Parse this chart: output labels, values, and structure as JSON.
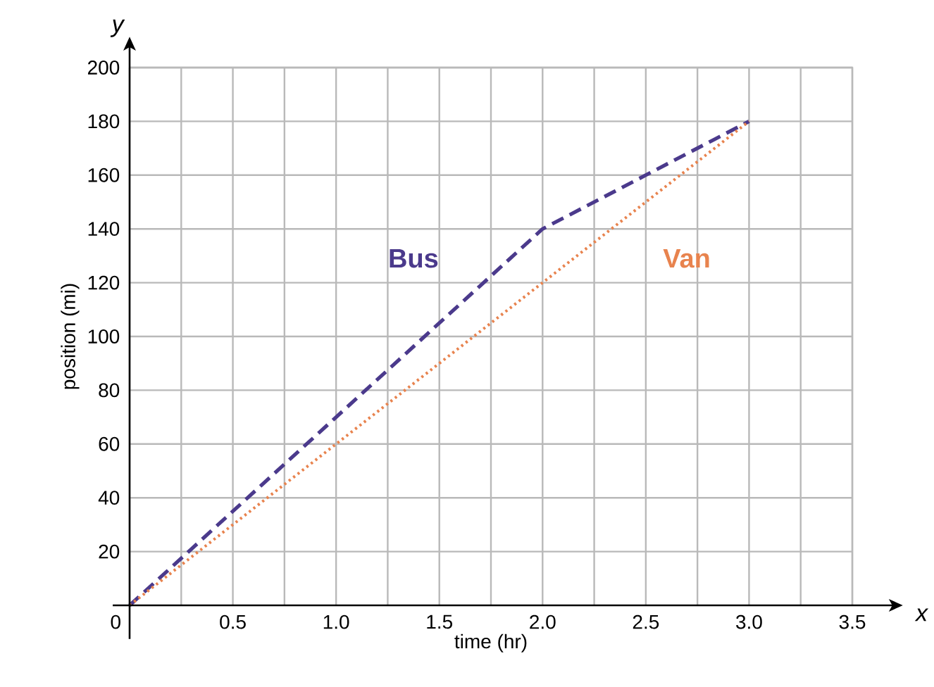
{
  "chart_data": {
    "type": "line",
    "xlabel": "time (hr)",
    "ylabel": "position (mi)",
    "annotations": [
      "x",
      "y"
    ],
    "xlim": [
      0,
      3.5
    ],
    "ylim": [
      0,
      200
    ],
    "xticks": [
      {
        "value": 0,
        "label": "0"
      },
      {
        "value": 0.5,
        "label": "0.5"
      },
      {
        "value": 1,
        "label": "1.0"
      },
      {
        "value": 1.5,
        "label": "1.5"
      },
      {
        "value": 2,
        "label": "2.0"
      },
      {
        "value": 2.5,
        "label": "2.5"
      },
      {
        "value": 3,
        "label": "3.0"
      },
      {
        "value": 3.5,
        "label": "3.5"
      }
    ],
    "yticks": [
      20,
      40,
      60,
      80,
      100,
      120,
      140,
      160,
      180,
      200
    ],
    "grid": true,
    "marker": "none",
    "series": [
      {
        "name": "Bus",
        "color": "#4b3a8c",
        "line_style": "dashed",
        "x": [
          0,
          2,
          2.5,
          3
        ],
        "values": [
          0,
          140,
          160,
          180
        ]
      },
      {
        "name": "Van",
        "color": "#e8834e",
        "line_style": "dotted",
        "x": [
          0,
          3
        ],
        "values": [
          0,
          180
        ]
      }
    ]
  }
}
